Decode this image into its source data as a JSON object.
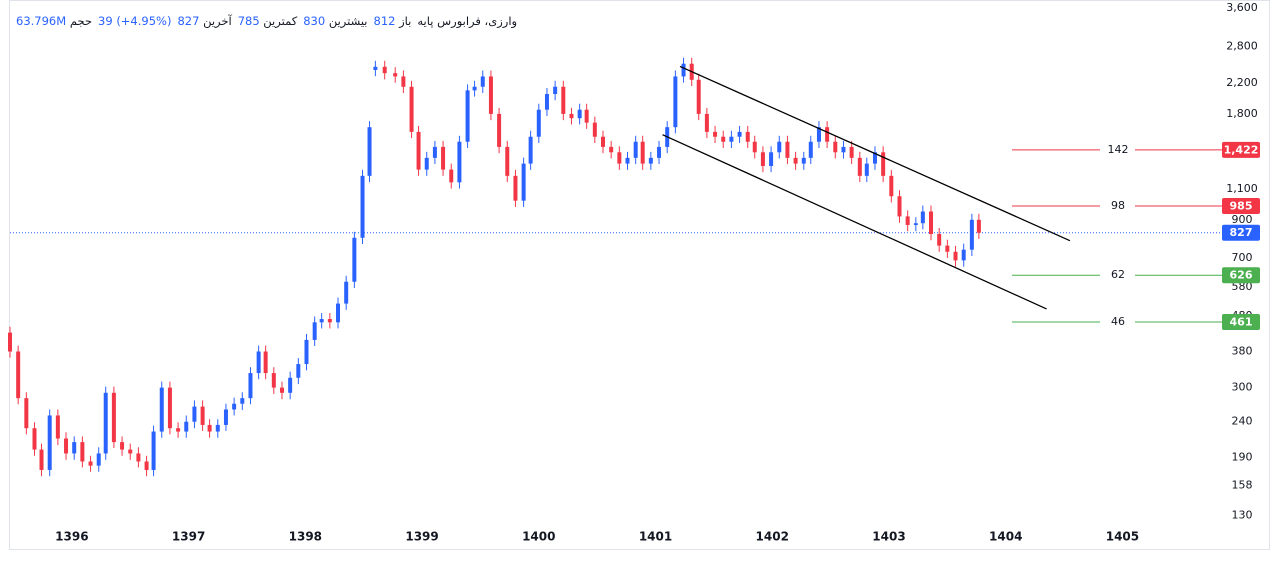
{
  "chart_data": {
    "type": "candlestick",
    "title": "وارزی، فرابورس پایه",
    "info": {
      "open_label": "باز",
      "open": 812,
      "high_label": "بیشترین",
      "high": 830,
      "low_label": "کمترین",
      "low": 785,
      "last_label": "آخرین",
      "last": 827,
      "change": 39,
      "change_pct": "(+4.95%)",
      "volume_label": "حجم",
      "volume": "63.796M"
    },
    "up_color": "#2962ff",
    "down_color": "#f23645",
    "x": [
      1395.47,
      1395.54,
      1395.61,
      1395.68,
      1395.74,
      1395.81,
      1395.88,
      1395.95,
      1396.02,
      1396.09,
      1396.16,
      1396.23,
      1396.29,
      1396.36,
      1396.43,
      1396.5,
      1396.57,
      1396.64,
      1396.7,
      1396.77,
      1396.84,
      1396.91,
      1396.98,
      1397.05,
      1397.12,
      1397.18,
      1397.25,
      1397.32,
      1397.39,
      1397.46,
      1397.53,
      1397.6,
      1397.66,
      1397.73,
      1397.8,
      1397.87,
      1397.94,
      1398.01,
      1398.08,
      1398.14,
      1398.21,
      1398.28,
      1398.35,
      1398.42,
      1398.49,
      1398.55,
      1398.6,
      1398.68,
      1398.77,
      1398.84,
      1398.91,
      1398.97,
      1399.04,
      1399.11,
      1399.18,
      1399.25,
      1399.32,
      1399.39,
      1399.45,
      1399.52,
      1399.59,
      1399.66,
      1399.73,
      1399.8,
      1399.87,
      1399.93,
      1400.0,
      1400.07,
      1400.14,
      1400.21,
      1400.28,
      1400.35,
      1400.41,
      1400.48,
      1400.55,
      1400.62,
      1400.69,
      1400.76,
      1400.83,
      1400.89,
      1400.96,
      1401.03,
      1401.1,
      1401.17,
      1401.24,
      1401.31,
      1401.37,
      1401.44,
      1401.51,
      1401.58,
      1401.65,
      1401.72,
      1401.79,
      1401.85,
      1401.92,
      1401.99,
      1402.06,
      1402.13,
      1402.2,
      1402.27,
      1402.33,
      1402.4,
      1402.47,
      1402.54,
      1402.61,
      1402.68,
      1402.75,
      1402.81,
      1402.88,
      1402.95,
      1403.02,
      1403.09,
      1403.16,
      1403.23,
      1403.29,
      1403.36,
      1403.43,
      1403.5,
      1403.57,
      1403.64,
      1403.71,
      1403.77
    ],
    "open": [
      430,
      380,
      280,
      230,
      200,
      175,
      250,
      215,
      195,
      210,
      185,
      180,
      195,
      290,
      210,
      200,
      195,
      185,
      175,
      225,
      300,
      230,
      225,
      240,
      265,
      235,
      225,
      235,
      260,
      270,
      280,
      330,
      380,
      330,
      300,
      290,
      320,
      350,
      410,
      460,
      470,
      460,
      520,
      600,
      800,
      1200,
      2400,
      2450,
      2350,
      2300,
      2150,
      1600,
      1250,
      1350,
      1450,
      1250,
      1150,
      1500,
      2100,
      2150,
      2300,
      1800,
      1450,
      1200,
      1020,
      1300,
      1550,
      1850,
      2050,
      2150,
      1800,
      1750,
      1850,
      1700,
      1550,
      1450,
      1400,
      1300,
      1350,
      1500,
      1300,
      1350,
      1450,
      1650,
      2300,
      2500,
      2250,
      1800,
      1600,
      1550,
      1500,
      1550,
      1600,
      1500,
      1400,
      1280,
      1400,
      1500,
      1350,
      1300,
      1350,
      1500,
      1650,
      1500,
      1400,
      1450,
      1350,
      1200,
      1300,
      1400,
      1200,
      1050,
      920,
      870,
      880,
      950,
      820,
      760,
      730,
      690,
      740,
      900
    ],
    "high": [
      447,
      395,
      291,
      239,
      208,
      260,
      260,
      224,
      218,
      218,
      192,
      203,
      302,
      302,
      218,
      208,
      203,
      192,
      234,
      312,
      312,
      239,
      250,
      276,
      276,
      244,
      244,
      270,
      281,
      291,
      343,
      395,
      395,
      343,
      312,
      333,
      364,
      426,
      478,
      489,
      489,
      541,
      624,
      832,
      1248,
      1716,
      2548,
      2548,
      2444,
      2392,
      2236,
      1664,
      1404,
      1508,
      1508,
      1300,
      1560,
      2184,
      2236,
      2392,
      2392,
      1872,
      1508,
      1248,
      1352,
      1612,
      1924,
      2132,
      2236,
      2236,
      1872,
      1924,
      1924,
      1768,
      1612,
      1508,
      1456,
      1404,
      1560,
      1560,
      1404,
      1508,
      1716,
      2392,
      2600,
      2600,
      2340,
      1872,
      1664,
      1612,
      1612,
      1664,
      1664,
      1560,
      1456,
      1456,
      1560,
      1560,
      1404,
      1404,
      1560,
      1716,
      1716,
      1560,
      1508,
      1508,
      1404,
      1352,
      1456,
      1456,
      1248,
      1092,
      957,
      915,
      988,
      988,
      853,
      790,
      759,
      770,
      936,
      936
    ],
    "low": [
      365,
      269,
      221,
      192,
      168,
      168,
      206,
      187,
      187,
      178,
      173,
      173,
      187,
      202,
      192,
      187,
      178,
      168,
      168,
      216,
      221,
      216,
      216,
      230,
      226,
      216,
      216,
      226,
      250,
      259,
      269,
      317,
      317,
      288,
      278,
      278,
      307,
      336,
      394,
      442,
      442,
      442,
      499,
      576,
      768,
      1152,
      2304,
      2256,
      2208,
      2064,
      1536,
      1200,
      1200,
      1296,
      1200,
      1104,
      1104,
      1440,
      2016,
      2064,
      1728,
      1392,
      1152,
      979,
      979,
      1248,
      1488,
      1776,
      1968,
      1728,
      1680,
      1680,
      1632,
      1488,
      1392,
      1344,
      1248,
      1248,
      1296,
      1248,
      1248,
      1296,
      1392,
      1584,
      2208,
      2160,
      1728,
      1536,
      1488,
      1440,
      1440,
      1488,
      1440,
      1344,
      1229,
      1229,
      1344,
      1296,
      1248,
      1248,
      1296,
      1440,
      1440,
      1344,
      1344,
      1296,
      1152,
      1152,
      1248,
      1152,
      1008,
      883,
      835,
      835,
      845,
      787,
      730,
      701,
      662,
      662,
      710,
      794
    ],
    "close": [
      380,
      280,
      230,
      200,
      175,
      250,
      215,
      195,
      210,
      185,
      180,
      195,
      290,
      210,
      200,
      195,
      185,
      175,
      225,
      300,
      230,
      225,
      240,
      265,
      235,
      225,
      235,
      260,
      270,
      280,
      330,
      380,
      330,
      300,
      290,
      320,
      350,
      410,
      460,
      470,
      460,
      520,
      600,
      800,
      1200,
      1650,
      2450,
      2350,
      2300,
      2150,
      1600,
      1250,
      1350,
      1450,
      1250,
      1150,
      1500,
      2100,
      2150,
      2300,
      1800,
      1450,
      1200,
      1020,
      1300,
      1550,
      1850,
      2050,
      2150,
      1800,
      1750,
      1850,
      1700,
      1550,
      1450,
      1400,
      1300,
      1350,
      1500,
      1300,
      1350,
      1450,
      1650,
      2300,
      2500,
      2250,
      1800,
      1600,
      1550,
      1500,
      1550,
      1600,
      1500,
      1400,
      1280,
      1400,
      1500,
      1350,
      1300,
      1350,
      1500,
      1650,
      1500,
      1400,
      1450,
      1350,
      1200,
      1300,
      1400,
      1200,
      1050,
      920,
      870,
      880,
      950,
      820,
      760,
      730,
      690,
      740,
      900,
      827
    ],
    "log_y": true,
    "ylim": [
      105,
      3600
    ],
    "yticks": [
      {
        "value": 3600,
        "label": "3,600"
      },
      {
        "value": 2800,
        "label": "2,800"
      },
      {
        "value": 2200,
        "label": "2,200"
      },
      {
        "value": 1800,
        "label": "1,800"
      },
      {
        "value": 1100,
        "label": "1,100"
      },
      900,
      700,
      580,
      480,
      380,
      300,
      240,
      190,
      158,
      130
    ],
    "xlim": [
      1395.47,
      1405.75
    ],
    "xticks": [
      1396,
      1397,
      1398,
      1399,
      1400,
      1401,
      1402,
      1403,
      1404,
      1405
    ],
    "last_price": 827,
    "last_color": "#2962ff",
    "levels": [
      {
        "name": "142",
        "value": 1422,
        "value_label": "1,422",
        "color": "#f23645"
      },
      {
        "name": "98",
        "value": 985,
        "color": "#f23645"
      },
      {
        "name": "62",
        "value": 626,
        "color": "#4caf50"
      },
      {
        "name": "46",
        "value": 461,
        "color": "#4caf50"
      }
    ],
    "trendlines": [
      {
        "x": [
          1401.21,
          1404.55
        ],
        "y": [
          2456,
          785
        ],
        "color": "#000000"
      },
      {
        "x": [
          1401.06,
          1404.35
        ],
        "y": [
          1571,
          502
        ],
        "color": "#000000"
      }
    ]
  }
}
